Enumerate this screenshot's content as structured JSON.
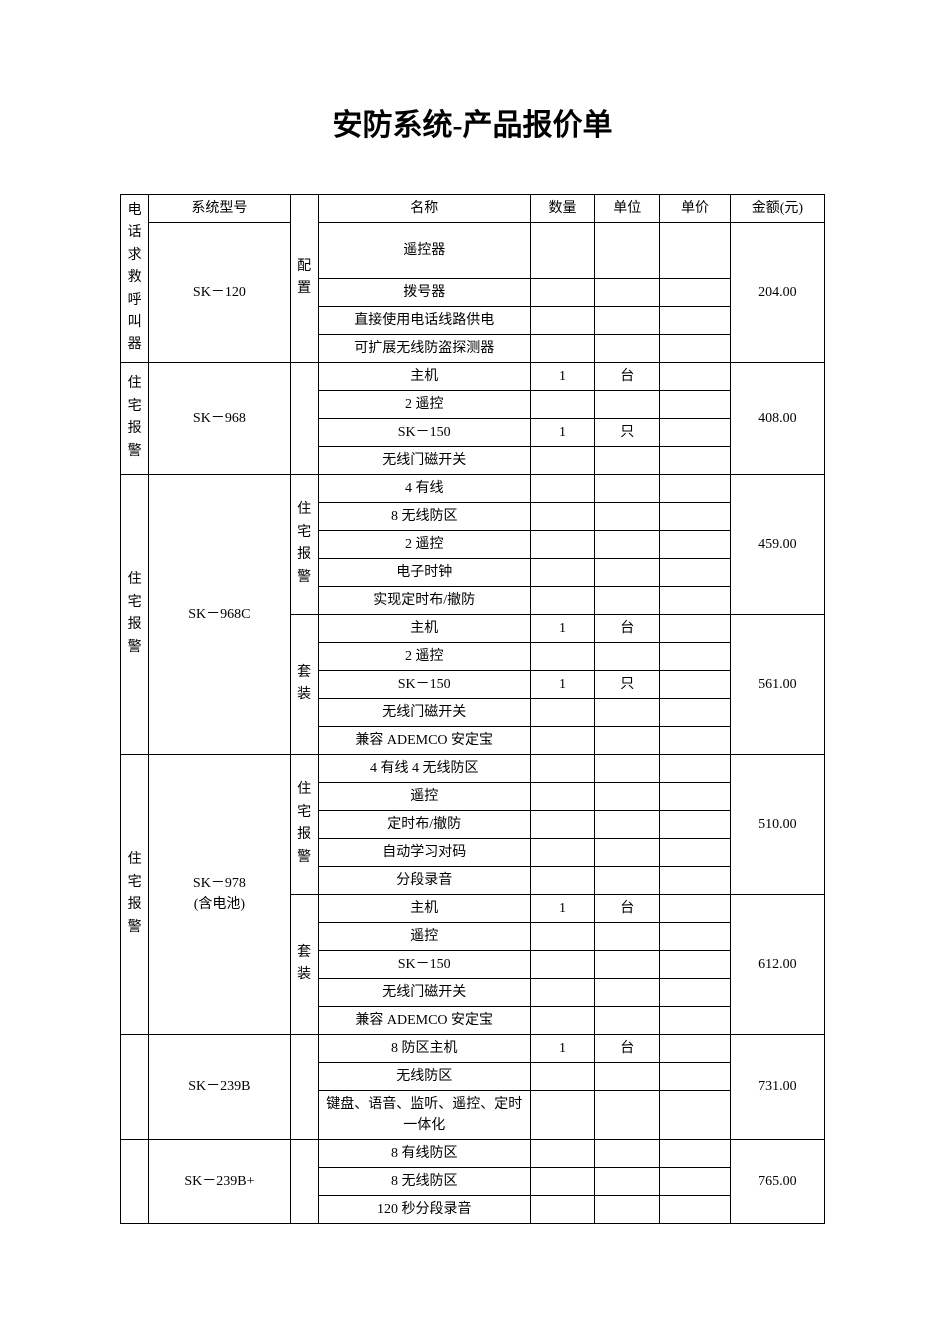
{
  "title": "安防系统-产品报价单",
  "headers": {
    "category": "电话求救呼叫器",
    "model": "系统型号",
    "config": "",
    "name": "名称",
    "qty": "数量",
    "unit": "单位",
    "price": "单价",
    "amount": "金额(元)"
  },
  "blocks": [
    {
      "category_vertical": [
        "电",
        "话",
        "求",
        "救",
        "呼",
        "叫",
        "器"
      ],
      "model": "SK－120",
      "config_vertical": [
        "配",
        "置"
      ],
      "amount": "204.00",
      "items": [
        {
          "name": "遥控器",
          "qty": "",
          "unit": ""
        },
        {
          "name": "拨号器",
          "qty": "",
          "unit": ""
        },
        {
          "name": "直接使用电话线路供电",
          "qty": "",
          "unit": ""
        },
        {
          "name": "可扩展无线防盗探测器",
          "qty": "",
          "unit": ""
        }
      ]
    },
    {
      "category_vertical": [
        "住",
        "宅",
        "报",
        "警"
      ],
      "model": "SK－968",
      "config_vertical": [],
      "amount": "408.00",
      "items": [
        {
          "name": "主机",
          "qty": "1",
          "unit": "台"
        },
        {
          "name": "2 遥控",
          "qty": "",
          "unit": ""
        },
        {
          "name": "SK－150",
          "qty": "1",
          "unit": "只"
        },
        {
          "name": "无线门磁开关",
          "qty": "",
          "unit": ""
        }
      ]
    },
    {
      "category_vertical": [
        "住",
        "宅",
        "报",
        "警"
      ],
      "model": "SK－968C",
      "groups": [
        {
          "config_vertical": [
            "住",
            "宅",
            "报",
            "警"
          ],
          "amount": "459.00",
          "items": [
            {
              "name": "4 有线",
              "qty": "",
              "unit": ""
            },
            {
              "name": "8 无线防区",
              "qty": "",
              "unit": ""
            },
            {
              "name": "2 遥控",
              "qty": "",
              "unit": ""
            },
            {
              "name": "电子时钟",
              "qty": "",
              "unit": ""
            },
            {
              "name": "实现定时布/撤防",
              "qty": "",
              "unit": ""
            }
          ]
        },
        {
          "config_vertical": [
            "套",
            "装"
          ],
          "amount": "561.00",
          "items": [
            {
              "name": "主机",
              "qty": "1",
              "unit": "台"
            },
            {
              "name": "2 遥控",
              "qty": "",
              "unit": ""
            },
            {
              "name": "SK－150",
              "qty": "1",
              "unit": "只"
            },
            {
              "name": "无线门磁开关",
              "qty": "",
              "unit": ""
            },
            {
              "name": "兼容 ADEMCO 安定宝",
              "qty": "",
              "unit": ""
            }
          ]
        }
      ]
    },
    {
      "category_vertical": [
        "住",
        "宅",
        "报",
        "警"
      ],
      "model": "SK－978\n(含电池)",
      "groups": [
        {
          "config_vertical": [
            "住",
            "宅",
            "报",
            "警"
          ],
          "amount": "510.00",
          "items": [
            {
              "name": "4 有线 4 无线防区",
              "qty": "",
              "unit": ""
            },
            {
              "name": "遥控",
              "qty": "",
              "unit": ""
            },
            {
              "name": "定时布/撤防",
              "qty": "",
              "unit": ""
            },
            {
              "name": "自动学习对码",
              "qty": "",
              "unit": ""
            },
            {
              "name": "分段录音",
              "qty": "",
              "unit": ""
            }
          ]
        },
        {
          "config_vertical": [
            "套",
            "装"
          ],
          "amount": "612.00",
          "items": [
            {
              "name": "主机",
              "qty": "1",
              "unit": "台"
            },
            {
              "name": "遥控",
              "qty": "",
              "unit": ""
            },
            {
              "name": "SK－150",
              "qty": "",
              "unit": ""
            },
            {
              "name": "无线门磁开关",
              "qty": "",
              "unit": ""
            },
            {
              "name": "兼容 ADEMCO 安定宝",
              "qty": "",
              "unit": ""
            }
          ]
        }
      ]
    },
    {
      "category_vertical": [],
      "model": "SK－239B",
      "config_vertical": [],
      "amount": "731.00",
      "items": [
        {
          "name": "8 防区主机",
          "qty": "1",
          "unit": "台"
        },
        {
          "name": "无线防区",
          "qty": "",
          "unit": ""
        },
        {
          "name": "键盘、语音、监听、遥控、定时一体化",
          "qty": "",
          "unit": ""
        }
      ]
    },
    {
      "category_vertical": [],
      "model": "SK－239B+",
      "config_vertical": [],
      "amount": "765.00",
      "items": [
        {
          "name": "8 有线防区",
          "qty": "",
          "unit": ""
        },
        {
          "name": "8 无线防区",
          "qty": "",
          "unit": ""
        },
        {
          "name": "120 秒分段录音",
          "qty": "",
          "unit": ""
        }
      ]
    }
  ],
  "style": {
    "title_fontsize": 30,
    "cell_fontsize": 14,
    "border_color": "#000000",
    "background": "#ffffff"
  }
}
